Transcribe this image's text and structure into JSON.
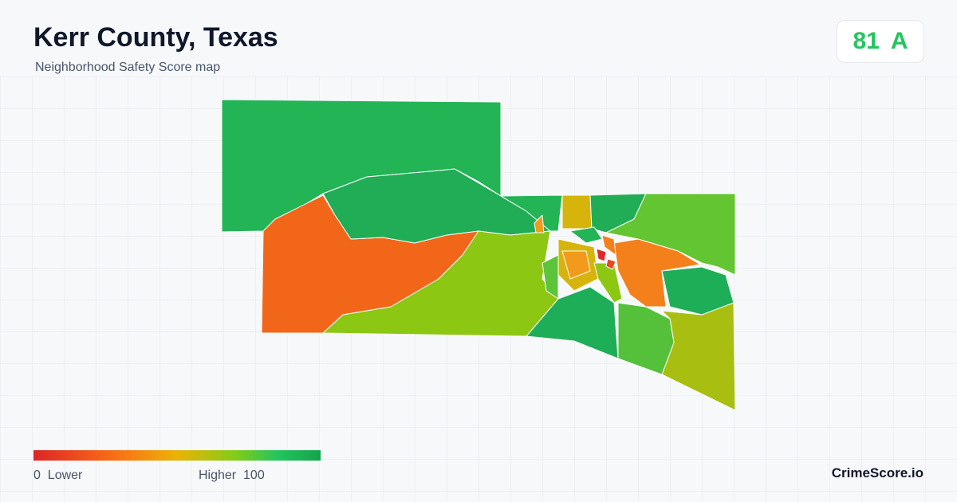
{
  "header": {
    "title": "Kerr County, Texas",
    "subtitle": "Neighborhood Safety Score map"
  },
  "score": {
    "value": 81,
    "grade": "A"
  },
  "legend": {
    "min": 0,
    "min_label": "Lower",
    "max_label": "Higher",
    "max": 100
  },
  "footer": {
    "brand": "CrimeScore.io"
  }
}
